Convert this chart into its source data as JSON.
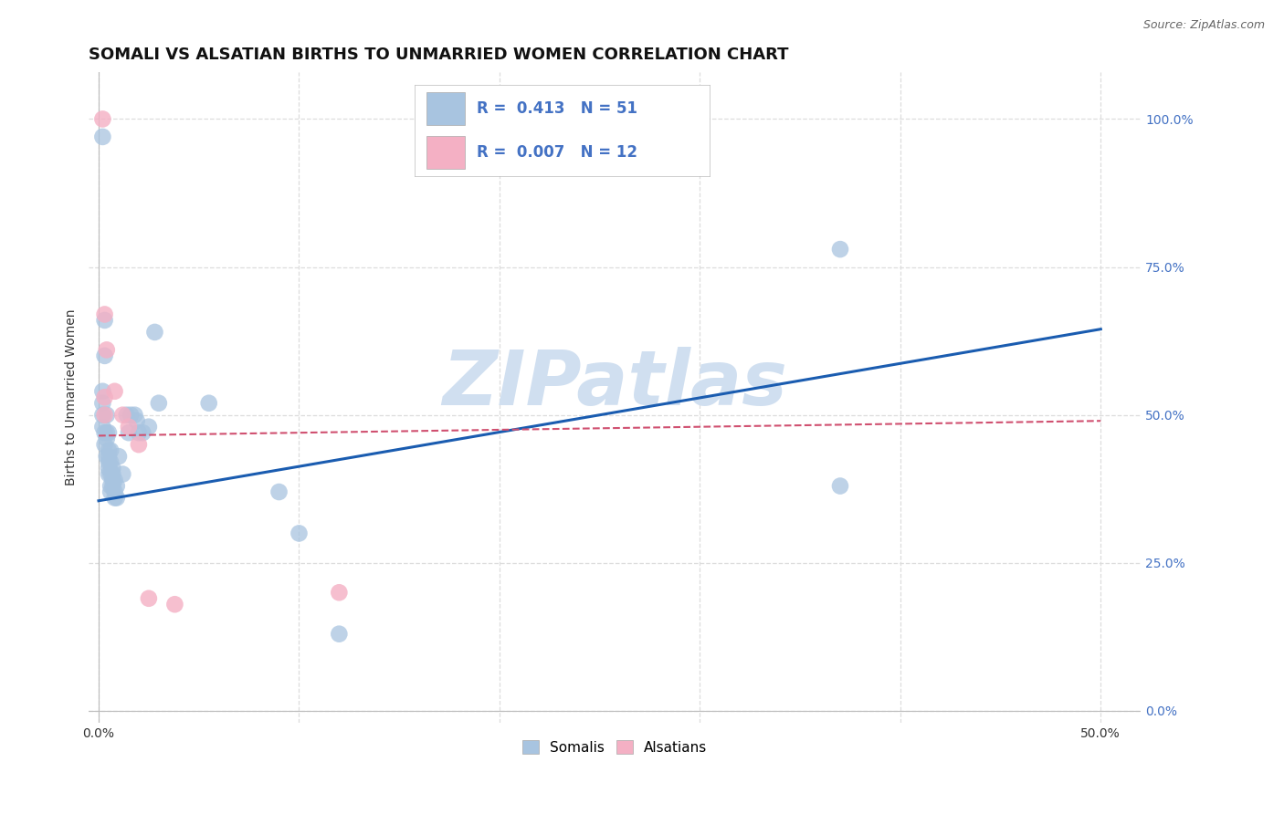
{
  "title": "SOMALI VS ALSATIAN BIRTHS TO UNMARRIED WOMEN CORRELATION CHART",
  "source": "Source: ZipAtlas.com",
  "ylabel": "Births to Unmarried Women",
  "xlim": [
    -0.005,
    0.52
  ],
  "ylim": [
    -0.02,
    1.08
  ],
  "ytick_vals": [
    0.0,
    0.25,
    0.5,
    0.75,
    1.0
  ],
  "xtick_vals": [
    0.0,
    0.1,
    0.2,
    0.3,
    0.4,
    0.5
  ],
  "somali_color": "#a8c4e0",
  "alsatian_color": "#f4b0c4",
  "somali_line_color": "#1a5cb0",
  "alsatian_line_color": "#d05070",
  "somali_line": [
    [
      0.0,
      0.355
    ],
    [
      0.5,
      0.645
    ]
  ],
  "alsatian_line": [
    [
      0.0,
      0.465
    ],
    [
      0.5,
      0.49
    ]
  ],
  "watermark": "ZIPatlas",
  "watermark_color": "#d0dff0",
  "somali_points": [
    [
      0.002,
      0.97
    ],
    [
      0.003,
      0.66
    ],
    [
      0.003,
      0.6
    ],
    [
      0.002,
      0.54
    ],
    [
      0.002,
      0.52
    ],
    [
      0.002,
      0.5
    ],
    [
      0.002,
      0.48
    ],
    [
      0.003,
      0.47
    ],
    [
      0.003,
      0.45
    ],
    [
      0.004,
      0.5
    ],
    [
      0.004,
      0.47
    ],
    [
      0.004,
      0.46
    ],
    [
      0.004,
      0.43
    ],
    [
      0.005,
      0.47
    ],
    [
      0.005,
      0.44
    ],
    [
      0.005,
      0.43
    ],
    [
      0.005,
      0.42
    ],
    [
      0.005,
      0.41
    ],
    [
      0.005,
      0.4
    ],
    [
      0.006,
      0.44
    ],
    [
      0.006,
      0.42
    ],
    [
      0.006,
      0.4
    ],
    [
      0.006,
      0.38
    ],
    [
      0.006,
      0.37
    ],
    [
      0.007,
      0.41
    ],
    [
      0.007,
      0.4
    ],
    [
      0.007,
      0.39
    ],
    [
      0.007,
      0.38
    ],
    [
      0.008,
      0.39
    ],
    [
      0.008,
      0.37
    ],
    [
      0.008,
      0.36
    ],
    [
      0.009,
      0.38
    ],
    [
      0.009,
      0.36
    ],
    [
      0.01,
      0.43
    ],
    [
      0.012,
      0.4
    ],
    [
      0.014,
      0.5
    ],
    [
      0.015,
      0.47
    ],
    [
      0.016,
      0.5
    ],
    [
      0.018,
      0.5
    ],
    [
      0.019,
      0.49
    ],
    [
      0.02,
      0.47
    ],
    [
      0.022,
      0.47
    ],
    [
      0.025,
      0.48
    ],
    [
      0.028,
      0.64
    ],
    [
      0.03,
      0.52
    ],
    [
      0.055,
      0.52
    ],
    [
      0.09,
      0.37
    ],
    [
      0.1,
      0.3
    ],
    [
      0.12,
      0.13
    ],
    [
      0.37,
      0.78
    ],
    [
      0.37,
      0.38
    ]
  ],
  "alsatian_points": [
    [
      0.002,
      1.0
    ],
    [
      0.003,
      0.67
    ],
    [
      0.004,
      0.61
    ],
    [
      0.003,
      0.53
    ],
    [
      0.003,
      0.5
    ],
    [
      0.008,
      0.54
    ],
    [
      0.012,
      0.5
    ],
    [
      0.015,
      0.48
    ],
    [
      0.02,
      0.45
    ],
    [
      0.025,
      0.19
    ],
    [
      0.038,
      0.18
    ],
    [
      0.12,
      0.2
    ]
  ],
  "grid_color": "#dddddd",
  "background_color": "#ffffff",
  "title_fontsize": 13,
  "axis_fontsize": 10,
  "tick_fontsize": 10,
  "right_tick_color": "#4472c4"
}
